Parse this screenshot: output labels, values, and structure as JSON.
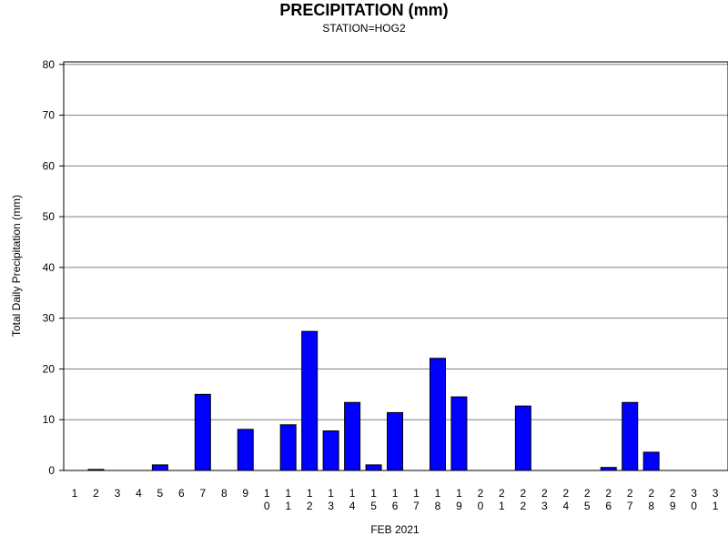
{
  "chart_data": {
    "type": "bar",
    "title": "PRECIPITATION (mm)",
    "subtitle": "STATION=HOG2",
    "xlabel": "FEB 2021",
    "ylabel": "Total Daily Precipitation (mm)",
    "ylim": [
      0,
      80
    ],
    "yticks": [
      0,
      10,
      20,
      30,
      40,
      50,
      60,
      70,
      80
    ],
    "grid": true,
    "bar_color": "#0000ff",
    "categories": [
      "1",
      "2",
      "3",
      "4",
      "5",
      "6",
      "7",
      "8",
      "9",
      "10",
      "11",
      "12",
      "13",
      "14",
      "15",
      "16",
      "17",
      "18",
      "19",
      "20",
      "21",
      "22",
      "23",
      "24",
      "25",
      "26",
      "27",
      "28",
      "29",
      "30",
      "31"
    ],
    "values": [
      0,
      0.2,
      0,
      0,
      1.1,
      0,
      15.0,
      0,
      8.1,
      0,
      9.0,
      27.4,
      7.8,
      13.4,
      1.1,
      11.4,
      0,
      22.1,
      14.5,
      0,
      0,
      12.7,
      0,
      0,
      0,
      0.6,
      13.4,
      3.6,
      0,
      0,
      0
    ]
  }
}
